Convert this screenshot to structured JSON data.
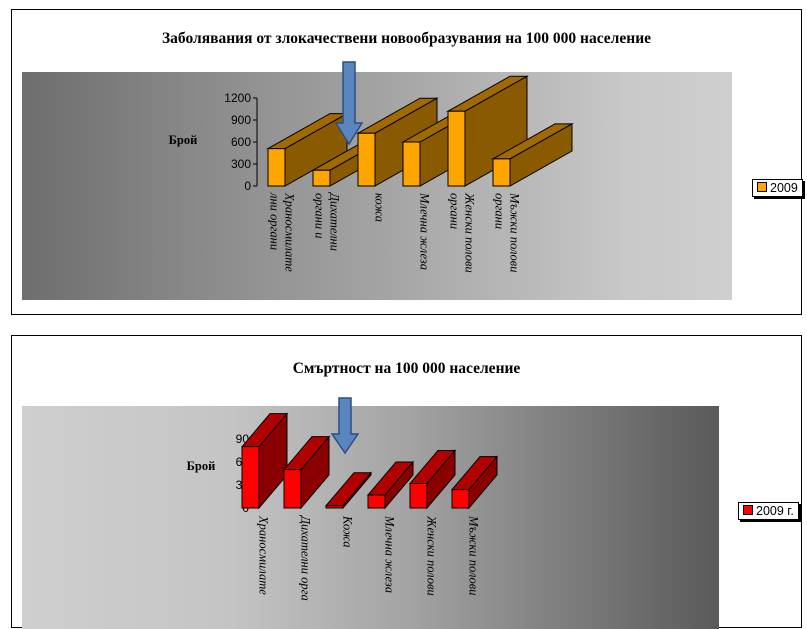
{
  "chart_data": [
    {
      "type": "bar",
      "title": "Заболявания от злокачествени новообразувания на 100 000 население",
      "ylabel": "Брой",
      "ylim": [
        0,
        1200
      ],
      "yticks": [
        "0",
        "300",
        "600",
        "900",
        "1200"
      ],
      "categories": [
        [
          "Храносмилате",
          "лни органи"
        ],
        [
          "Дихателни",
          "органи и"
        ],
        [
          "кожа"
        ],
        [
          "Млечна жлеза"
        ],
        [
          "Женски полови",
          "органи"
        ],
        [
          "Мъжки полови",
          "органи"
        ]
      ],
      "series": [
        {
          "name": "2009",
          "values": [
            510,
            215,
            720,
            600,
            1020,
            370
          ]
        }
      ],
      "colors": {
        "front": "#ffa500",
        "side": "#8a5a00",
        "top": "#a06a00"
      },
      "legend_position": "right",
      "annotation": "blue-down-arrow"
    },
    {
      "type": "bar",
      "title": "Смъртност на 100 000 население",
      "ylabel": "Брой",
      "ylim": [
        0,
        90
      ],
      "yticks": [
        "0",
        "30",
        "60",
        "90"
      ],
      "categories": [
        [
          "Храносмилате"
        ],
        [
          "Дихателни орга"
        ],
        [
          "Кожа"
        ],
        [
          "Млечна жлеза"
        ],
        [
          "Женски полови"
        ],
        [
          "Мъжки полови"
        ]
      ],
      "series": [
        {
          "name": "2009 г.",
          "values": [
            80,
            50,
            3,
            17,
            32,
            24
          ]
        }
      ],
      "colors": {
        "front": "#ff0000",
        "side": "#8a0000",
        "top": "#b00000"
      },
      "legend_position": "right",
      "annotation": "blue-down-arrow"
    }
  ]
}
